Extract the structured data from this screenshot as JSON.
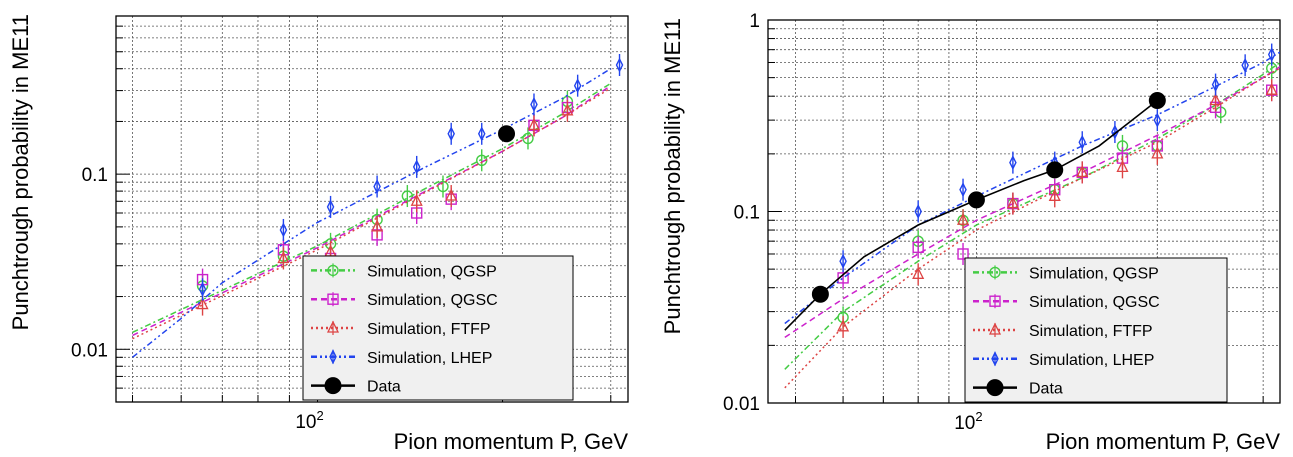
{
  "chart_data": [
    {
      "type": "scatter",
      "panel": "left",
      "xlabel": "Pion momentum P, GeV",
      "ylabel": "Punchtrough probability in ME11",
      "xscale": "log",
      "yscale": "log",
      "xlim": [
        47,
        320
      ],
      "ylim": [
        0.005,
        0.8
      ],
      "x_tick_labels": [
        {
          "value": 100,
          "label": "10",
          "sup": "2"
        }
      ],
      "y_tick_labels": [
        {
          "value": 0.01,
          "label": "0.01"
        },
        {
          "value": 0.1,
          "label": "0.1"
        }
      ],
      "grid": true,
      "legend_position": "bottom-right",
      "series": [
        {
          "name": "Simulation, QGSP",
          "color": "#44cc44",
          "marker": "circle",
          "line_style": "dash-dot",
          "x": [
            65,
            88,
            105,
            125,
            140,
            160,
            185,
            220,
            255
          ],
          "y": [
            0.023,
            0.034,
            0.04,
            0.055,
            0.075,
            0.085,
            0.12,
            0.16,
            0.26
          ],
          "curve": [
            [
              50,
              0.0125
            ],
            [
              100,
              0.039
            ],
            [
              150,
              0.083
            ],
            [
              200,
              0.14
            ],
            [
              250,
              0.22
            ],
            [
              300,
              0.33
            ]
          ]
        },
        {
          "name": "Simulation, QGSC",
          "color": "#cc22cc",
          "marker": "square",
          "line_style": "dashed",
          "x": [
            65,
            88,
            105,
            125,
            145,
            165,
            225,
            255
          ],
          "y": [
            0.025,
            0.037,
            0.033,
            0.045,
            0.06,
            0.072,
            0.19,
            0.24
          ],
          "curve": [
            [
              50,
              0.012
            ],
            [
              100,
              0.038
            ],
            [
              150,
              0.08
            ],
            [
              200,
              0.135
            ],
            [
              250,
              0.21
            ],
            [
              300,
              0.32
            ]
          ]
        },
        {
          "name": "Simulation, FTFP",
          "color": "#dd4444",
          "marker": "triangle",
          "line_style": "dotted",
          "x": [
            65,
            88,
            105,
            125,
            145,
            165,
            225,
            255
          ],
          "y": [
            0.018,
            0.033,
            0.036,
            0.05,
            0.07,
            0.075,
            0.19,
            0.23
          ],
          "curve": [
            [
              50,
              0.0115
            ],
            [
              100,
              0.037
            ],
            [
              150,
              0.079
            ],
            [
              200,
              0.135
            ],
            [
              250,
              0.21
            ],
            [
              300,
              0.31
            ]
          ]
        },
        {
          "name": "Simulation, LHEP",
          "color": "#2244ee",
          "marker": "diamond",
          "line_style": "dash-dot-dot",
          "x": [
            65,
            88,
            105,
            125,
            145,
            165,
            185,
            225,
            265,
            310
          ],
          "y": [
            0.022,
            0.048,
            0.065,
            0.085,
            0.11,
            0.17,
            0.17,
            0.25,
            0.32,
            0.42
          ],
          "curve": [
            [
              50,
              0.009
            ],
            [
              60,
              0.015
            ],
            [
              70,
              0.024
            ],
            [
              100,
              0.053
            ],
            [
              150,
              0.11
            ],
            [
              200,
              0.18
            ],
            [
              250,
              0.27
            ],
            [
              300,
              0.4
            ]
          ]
        },
        {
          "name": "Data",
          "color": "#000000",
          "marker": "filled-circle",
          "line_style": "solid",
          "x": [
            203
          ],
          "y": [
            0.17
          ],
          "curve": []
        }
      ]
    },
    {
      "type": "scatter",
      "panel": "right",
      "xlabel": "Pion momentum P, GeV",
      "ylabel": "Punchtrough probability in ME11",
      "xscale": "log",
      "yscale": "log",
      "xlim": [
        45,
        320
      ],
      "ylim": [
        0.01,
        1
      ],
      "x_tick_labels": [
        {
          "value": 100,
          "label": "10",
          "sup": "2"
        }
      ],
      "y_tick_labels": [
        {
          "value": 0.01,
          "label": "0.01"
        },
        {
          "value": 0.1,
          "label": "0.1"
        },
        {
          "value": 1,
          "label": "1"
        }
      ],
      "grid": true,
      "legend_position": "bottom-right",
      "series": [
        {
          "name": "Simulation, QGSP",
          "color": "#44cc44",
          "marker": "circle",
          "line_style": "dash-dot",
          "x": [
            60,
            80,
            95,
            115,
            135,
            150,
            175,
            200,
            255,
            310
          ],
          "y": [
            0.028,
            0.07,
            0.09,
            0.11,
            0.13,
            0.16,
            0.22,
            0.22,
            0.33,
            0.56
          ],
          "curve": [
            [
              48,
              0.015
            ],
            [
              60,
              0.03
            ],
            [
              80,
              0.055
            ],
            [
              100,
              0.085
            ],
            [
              150,
              0.15
            ],
            [
              200,
              0.24
            ],
            [
              250,
              0.36
            ],
            [
              300,
              0.52
            ],
            [
              320,
              0.6
            ]
          ]
        },
        {
          "name": "Simulation, QGSC",
          "color": "#cc22cc",
          "marker": "square",
          "line_style": "dashed",
          "x": [
            60,
            80,
            95,
            115,
            135,
            150,
            175,
            200,
            250,
            310
          ],
          "y": [
            0.045,
            0.065,
            0.06,
            0.11,
            0.13,
            0.16,
            0.19,
            0.22,
            0.35,
            0.43
          ],
          "curve": [
            [
              48,
              0.022
            ],
            [
              60,
              0.035
            ],
            [
              80,
              0.06
            ],
            [
              100,
              0.09
            ],
            [
              150,
              0.16
            ],
            [
              200,
              0.25
            ],
            [
              250,
              0.36
            ],
            [
              300,
              0.5
            ],
            [
              320,
              0.57
            ]
          ]
        },
        {
          "name": "Simulation, FTFP",
          "color": "#dd4444",
          "marker": "triangle",
          "line_style": "dotted",
          "x": [
            60,
            80,
            95,
            115,
            135,
            150,
            175,
            200,
            250,
            310
          ],
          "y": [
            0.025,
            0.047,
            0.09,
            0.11,
            0.12,
            0.16,
            0.17,
            0.2,
            0.38,
            0.43
          ],
          "curve": [
            [
              48,
              0.012
            ],
            [
              60,
              0.025
            ],
            [
              80,
              0.05
            ],
            [
              100,
              0.08
            ],
            [
              150,
              0.15
            ],
            [
              200,
              0.23
            ],
            [
              250,
              0.35
            ],
            [
              300,
              0.5
            ],
            [
              320,
              0.56
            ]
          ]
        },
        {
          "name": "Simulation, LHEP",
          "color": "#2244ee",
          "marker": "diamond",
          "line_style": "dash-dot-dot",
          "x": [
            60,
            80,
            95,
            115,
            135,
            150,
            170,
            200,
            250,
            280,
            310
          ],
          "y": [
            0.055,
            0.1,
            0.13,
            0.18,
            0.18,
            0.23,
            0.26,
            0.3,
            0.46,
            0.58,
            0.66
          ],
          "curve": [
            [
              48,
              0.026
            ],
            [
              60,
              0.045
            ],
            [
              80,
              0.085
            ],
            [
              100,
              0.12
            ],
            [
              150,
              0.22
            ],
            [
              200,
              0.32
            ],
            [
              250,
              0.45
            ],
            [
              300,
              0.6
            ],
            [
              320,
              0.68
            ]
          ]
        },
        {
          "name": "Data",
          "color": "#000000",
          "marker": "filled-circle",
          "line_style": "solid",
          "x": [
            55,
            100,
            135,
            200
          ],
          "y": [
            0.037,
            0.115,
            0.165,
            0.38
          ],
          "curve": [
            [
              48,
              0.024
            ],
            [
              55,
              0.037
            ],
            [
              65,
              0.058
            ],
            [
              80,
              0.085
            ],
            [
              100,
              0.115
            ],
            [
              120,
              0.145
            ],
            [
              135,
              0.165
            ],
            [
              160,
              0.22
            ],
            [
              200,
              0.38
            ]
          ]
        }
      ]
    }
  ]
}
